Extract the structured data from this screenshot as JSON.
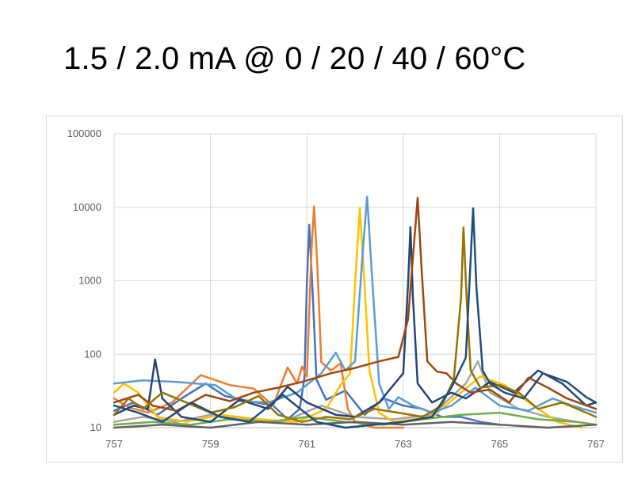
{
  "title": "1.5 / 2.0 mA @ 0 / 20 / 40 / 60°C",
  "chart_data": {
    "type": "line",
    "title": "1.5 / 2.0 mA @ 0 / 20 / 40 / 60°C",
    "xlabel": "",
    "ylabel": "",
    "xlim": [
      757,
      767
    ],
    "ylim": [
      10,
      100000
    ],
    "y_scale": "log",
    "grid": true,
    "legend": "none",
    "x_ticks": [
      "757",
      "759",
      "761",
      "763",
      "765",
      "767"
    ],
    "y_ticks": [
      "10",
      "100",
      "1000",
      "10000",
      "100000"
    ],
    "x_tick_values": [
      757,
      759,
      761,
      763,
      765,
      767
    ],
    "y_tick_values": [
      10,
      100,
      1000,
      10000,
      100000
    ],
    "series": [
      {
        "color": "#4472C4",
        "peak_x": 761.05,
        "peak_y": 5800,
        "points": [
          [
            757,
            17
          ],
          [
            757.4,
            22
          ],
          [
            757.9,
            15
          ],
          [
            758.4,
            25
          ],
          [
            758.9,
            40
          ],
          [
            759.3,
            27
          ],
          [
            759.8,
            23
          ],
          [
            760.3,
            20
          ],
          [
            760.6,
            13
          ],
          [
            760.85,
            18
          ],
          [
            760.95,
            48
          ],
          [
            761.0,
            900
          ],
          [
            761.05,
            5800
          ],
          [
            761.12,
            700
          ],
          [
            761.2,
            45
          ],
          [
            761.4,
            24
          ],
          [
            761.8,
            32
          ],
          [
            762.2,
            15
          ],
          [
            762.6,
            25
          ],
          [
            763.0,
            20
          ],
          [
            763.4,
            18
          ],
          [
            763.8,
            14
          ],
          [
            764.2,
            14
          ],
          [
            764.6,
            12
          ],
          [
            765.0,
            11
          ]
        ]
      },
      {
        "color": "#ED7D31",
        "peak_x": 761.15,
        "peak_y": 10300,
        "points": [
          [
            757,
            25
          ],
          [
            757.3,
            19
          ],
          [
            757.7,
            16
          ],
          [
            758.2,
            22
          ],
          [
            758.8,
            52
          ],
          [
            759.4,
            38
          ],
          [
            759.9,
            34
          ],
          [
            760.3,
            20
          ],
          [
            760.6,
            66
          ],
          [
            760.8,
            40
          ],
          [
            760.9,
            68
          ],
          [
            761.0,
            50
          ],
          [
            761.1,
            3000
          ],
          [
            761.15,
            10300
          ],
          [
            761.22,
            1500
          ],
          [
            761.3,
            78
          ],
          [
            761.5,
            60
          ],
          [
            761.7,
            75
          ],
          [
            761.85,
            18
          ],
          [
            762.0,
            12
          ],
          [
            762.4,
            10
          ],
          [
            763.0,
            10
          ]
        ]
      },
      {
        "color": "#A5A5A5",
        "peak_x": 764.55,
        "peak_y": 80,
        "points": [
          [
            757,
            12
          ],
          [
            757.6,
            14
          ],
          [
            758.3,
            12
          ],
          [
            759.0,
            15
          ],
          [
            759.8,
            13
          ],
          [
            760.5,
            12
          ],
          [
            761.3,
            20
          ],
          [
            762.0,
            14
          ],
          [
            762.8,
            13
          ],
          [
            763.6,
            15
          ],
          [
            764.3,
            40
          ],
          [
            764.55,
            80
          ],
          [
            764.8,
            30
          ],
          [
            765.4,
            18
          ],
          [
            766.0,
            14
          ],
          [
            766.6,
            12
          ],
          [
            767,
            11
          ]
        ]
      },
      {
        "color": "#FFC000",
        "peak_x": 762.1,
        "peak_y": 9800,
        "points": [
          [
            757,
            30
          ],
          [
            757.2,
            40
          ],
          [
            757.5,
            30
          ],
          [
            757.9,
            14
          ],
          [
            758.5,
            12
          ],
          [
            759.2,
            15
          ],
          [
            760.0,
            13
          ],
          [
            760.8,
            12
          ],
          [
            761.4,
            18
          ],
          [
            761.7,
            38
          ],
          [
            761.9,
            55
          ],
          [
            762.0,
            900
          ],
          [
            762.1,
            9800
          ],
          [
            762.18,
            1400
          ],
          [
            762.3,
            60
          ],
          [
            762.5,
            16
          ],
          [
            762.8,
            12
          ],
          [
            763.6,
            14
          ],
          [
            764.2,
            30
          ],
          [
            764.6,
            50
          ],
          [
            765.1,
            38
          ],
          [
            765.7,
            20
          ],
          [
            766.2,
            12
          ],
          [
            766.7,
            10
          ]
        ]
      },
      {
        "color": "#5B9BD5",
        "peak_x": 762.25,
        "peak_y": 14000,
        "points": [
          [
            757,
            40
          ],
          [
            757.6,
            44
          ],
          [
            758.3,
            42
          ],
          [
            759.1,
            38
          ],
          [
            759.6,
            23
          ],
          [
            760.2,
            22
          ],
          [
            760.8,
            30
          ],
          [
            761.3,
            55
          ],
          [
            761.6,
            105
          ],
          [
            761.8,
            60
          ],
          [
            762.0,
            80
          ],
          [
            762.15,
            2000
          ],
          [
            762.25,
            14000
          ],
          [
            762.35,
            1200
          ],
          [
            762.5,
            40
          ],
          [
            762.7,
            18
          ],
          [
            762.9,
            26
          ],
          [
            763.2,
            20
          ],
          [
            763.6,
            16
          ],
          [
            764.0,
            20
          ],
          [
            764.5,
            35
          ],
          [
            765.0,
            20
          ],
          [
            765.6,
            17
          ],
          [
            766.1,
            25
          ],
          [
            766.5,
            20
          ],
          [
            767,
            16
          ]
        ]
      },
      {
        "color": "#70AD47",
        "peak_x": 765.0,
        "peak_y": 16,
        "points": [
          [
            757,
            11
          ],
          [
            757.8,
            12
          ],
          [
            758.6,
            11
          ],
          [
            759.4,
            13
          ],
          [
            760.2,
            12
          ],
          [
            761.0,
            14
          ],
          [
            761.8,
            12
          ],
          [
            762.6,
            11
          ],
          [
            763.4,
            13
          ],
          [
            764.2,
            15
          ],
          [
            765.0,
            16
          ],
          [
            765.8,
            13
          ],
          [
            766.6,
            12
          ],
          [
            767,
            11
          ]
        ]
      },
      {
        "color": "#264478",
        "peak_x": 763.15,
        "peak_y": 5400,
        "points": [
          [
            757,
            15
          ],
          [
            757.4,
            20
          ],
          [
            757.7,
            18
          ],
          [
            757.85,
            85
          ],
          [
            758.0,
            25
          ],
          [
            758.4,
            14
          ],
          [
            759.0,
            12
          ],
          [
            759.6,
            24
          ],
          [
            760.2,
            18
          ],
          [
            760.6,
            36
          ],
          [
            761.0,
            22
          ],
          [
            761.6,
            15
          ],
          [
            762.0,
            14
          ],
          [
            762.5,
            22
          ],
          [
            763.0,
            55
          ],
          [
            763.1,
            900
          ],
          [
            763.15,
            5400
          ],
          [
            763.2,
            600
          ],
          [
            763.3,
            40
          ],
          [
            763.6,
            22
          ],
          [
            764.0,
            30
          ],
          [
            764.3,
            25
          ],
          [
            764.8,
            42
          ],
          [
            765.3,
            30
          ],
          [
            765.8,
            60
          ],
          [
            766.3,
            40
          ],
          [
            766.8,
            20
          ],
          [
            767,
            22
          ]
        ]
      },
      {
        "color": "#9E480E",
        "peak_x": 763.3,
        "peak_y": 13500,
        "points": [
          [
            757,
            22
          ],
          [
            757.5,
            28
          ],
          [
            757.8,
            20
          ],
          [
            758.3,
            17
          ],
          [
            758.9,
            28
          ],
          [
            759.4,
            23
          ],
          [
            759.9,
            30
          ],
          [
            760.4,
            35
          ],
          [
            760.9,
            42
          ],
          [
            761.5,
            55
          ],
          [
            762.0,
            65
          ],
          [
            762.5,
            80
          ],
          [
            762.9,
            92
          ],
          [
            763.1,
            300
          ],
          [
            763.3,
            13500
          ],
          [
            763.38,
            1500
          ],
          [
            763.5,
            80
          ],
          [
            763.7,
            58
          ],
          [
            763.9,
            55
          ],
          [
            764.1,
            40
          ],
          [
            764.4,
            30
          ],
          [
            764.8,
            33
          ],
          [
            765.2,
            22
          ],
          [
            765.6,
            48
          ],
          [
            766.0,
            35
          ],
          [
            766.4,
            25
          ],
          [
            767,
            18
          ]
        ]
      },
      {
        "color": "#636363",
        "peak_x": 762.5,
        "peak_y": 12,
        "points": [
          [
            757,
            10
          ],
          [
            758.0,
            11
          ],
          [
            759.0,
            10
          ],
          [
            760.0,
            12
          ],
          [
            761.0,
            11
          ],
          [
            762.0,
            12
          ],
          [
            763.0,
            11
          ],
          [
            764.0,
            12
          ],
          [
            765.0,
            11
          ],
          [
            766.0,
            10
          ],
          [
            767,
            11
          ]
        ]
      },
      {
        "color": "#997300",
        "peak_x": 764.25,
        "peak_y": 5300,
        "points": [
          [
            757,
            15
          ],
          [
            757.3,
            25
          ],
          [
            757.6,
            18
          ],
          [
            758.0,
            30
          ],
          [
            758.5,
            22
          ],
          [
            759.0,
            16
          ],
          [
            759.5,
            19
          ],
          [
            760.0,
            27
          ],
          [
            760.4,
            15
          ],
          [
            760.9,
            12
          ],
          [
            761.4,
            14
          ],
          [
            761.9,
            13
          ],
          [
            762.4,
            18
          ],
          [
            762.9,
            16
          ],
          [
            763.4,
            14
          ],
          [
            763.8,
            20
          ],
          [
            764.05,
            45
          ],
          [
            764.2,
            600
          ],
          [
            764.25,
            5300
          ],
          [
            764.32,
            500
          ],
          [
            764.4,
            60
          ],
          [
            764.6,
            35
          ],
          [
            765.0,
            38
          ],
          [
            765.4,
            30
          ],
          [
            765.8,
            18
          ],
          [
            766.3,
            22
          ],
          [
            766.8,
            16
          ],
          [
            767,
            14
          ]
        ]
      },
      {
        "color": "#1F4E79",
        "peak_x": 764.45,
        "peak_y": 9700,
        "points": [
          [
            757,
            20
          ],
          [
            757.5,
            16
          ],
          [
            758.0,
            12
          ],
          [
            758.6,
            22
          ],
          [
            759.2,
            14
          ],
          [
            759.8,
            12
          ],
          [
            760.5,
            28
          ],
          [
            761.2,
            12
          ],
          [
            761.8,
            10
          ],
          [
            762.4,
            11
          ],
          [
            763.0,
            12
          ],
          [
            763.6,
            14
          ],
          [
            764.0,
            35
          ],
          [
            764.3,
            90
          ],
          [
            764.4,
            2000
          ],
          [
            764.45,
            9700
          ],
          [
            764.52,
            800
          ],
          [
            764.65,
            60
          ],
          [
            764.8,
            40
          ],
          [
            765.1,
            30
          ],
          [
            765.5,
            25
          ],
          [
            765.9,
            55
          ],
          [
            766.4,
            42
          ],
          [
            766.8,
            26
          ],
          [
            767,
            22
          ]
        ]
      }
    ]
  }
}
